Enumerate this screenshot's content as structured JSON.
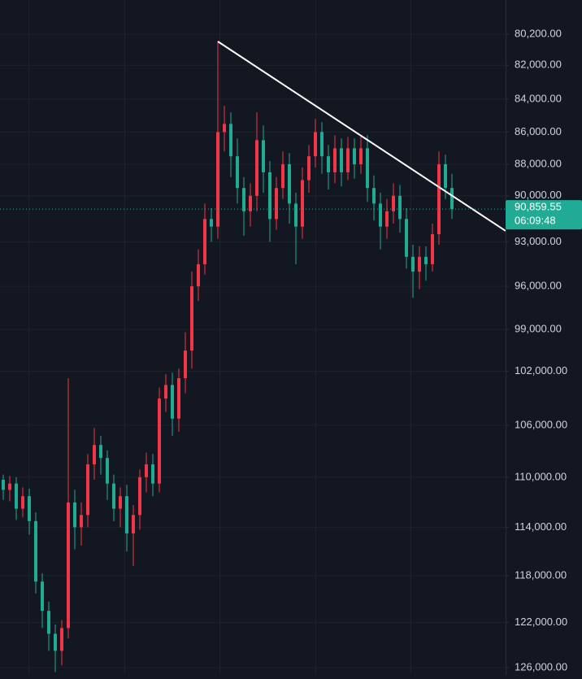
{
  "chart_data": {
    "type": "candlestick",
    "log_scale": true,
    "inverted": true,
    "grid": true,
    "up_color": "#22ab94",
    "down_color": "#f23645",
    "ylim": [
      78270,
      126660
    ],
    "yticks": [
      {
        "value": 80200,
        "label": "80,200.00"
      },
      {
        "value": 82000,
        "label": "82,000.00"
      },
      {
        "value": 84000,
        "label": "84,000.00"
      },
      {
        "value": 86000,
        "label": "86,000.00"
      },
      {
        "value": 88000,
        "label": "88,000.00"
      },
      {
        "value": 90000,
        "label": "90,000.00"
      },
      {
        "value": 93000,
        "label": "93,000.00"
      },
      {
        "value": 96000,
        "label": "96,000.00"
      },
      {
        "value": 99000,
        "label": "99,000.00"
      },
      {
        "value": 102000,
        "label": "102,000.00"
      },
      {
        "value": 106000,
        "label": "106,000.00"
      },
      {
        "value": 110000,
        "label": "110,000.00"
      },
      {
        "value": 114000,
        "label": "114,000.00"
      },
      {
        "value": 118000,
        "label": "118,000.00"
      },
      {
        "value": 122000,
        "label": "122,000.00"
      },
      {
        "value": 126000,
        "label": "126,000.00"
      }
    ],
    "open": [
      110200,
      111000,
      110500,
      112500,
      111500,
      113500,
      118500,
      121000,
      123000,
      124500,
      122500,
      112000,
      114000,
      113000,
      109000,
      107500,
      108500,
      110500,
      112500,
      111500,
      114500,
      113000,
      110000,
      109000,
      110500,
      104000,
      103000,
      105500,
      102500,
      100500,
      96000,
      94500,
      91500,
      92000,
      86000,
      85500,
      87500,
      89500,
      91000,
      90000,
      86500,
      88500,
      91500,
      89500,
      88000,
      90500,
      92000,
      89000,
      87500,
      86000,
      87500,
      88500,
      87000,
      88500,
      87000,
      88000,
      87000,
      89500,
      90500,
      92000,
      91000,
      90000,
      91500,
      94000,
      95000,
      94000,
      94500,
      92500,
      88000,
      89500
    ],
    "close": [
      111000,
      110500,
      112500,
      111500,
      113500,
      118500,
      121000,
      123000,
      124500,
      122500,
      112000,
      114000,
      113000,
      109000,
      107500,
      108500,
      110500,
      112500,
      111500,
      114500,
      113000,
      110000,
      109000,
      110500,
      104000,
      103000,
      105500,
      102500,
      100500,
      96000,
      94500,
      91500,
      92000,
      86000,
      85500,
      87500,
      89500,
      91000,
      90000,
      86500,
      88500,
      91500,
      89500,
      88000,
      90500,
      92000,
      89000,
      87500,
      86000,
      87500,
      88500,
      87000,
      88500,
      87000,
      88000,
      87000,
      89500,
      90500,
      92000,
      91000,
      90000,
      91500,
      94000,
      95000,
      94000,
      94500,
      92500,
      88000,
      89500,
      90859.55
    ],
    "high": [
      111800,
      111900,
      113400,
      113200,
      114600,
      119500,
      122500,
      124500,
      126400,
      125800,
      123400,
      115800,
      115500,
      114000,
      110200,
      109800,
      111800,
      113500,
      114000,
      116000,
      117200,
      114200,
      111200,
      111500,
      111200,
      105000,
      106800,
      106500,
      103600,
      101800,
      97000,
      95200,
      93000,
      92800,
      87200,
      88800,
      90500,
      92600,
      92000,
      91000,
      89800,
      93000,
      92200,
      90200,
      91800,
      94500,
      92800,
      89800,
      88200,
      88600,
      89600,
      89200,
      89400,
      89000,
      88900,
      88600,
      90400,
      91600,
      93500,
      92800,
      91800,
      92400,
      94800,
      96800,
      96200,
      95600,
      95000,
      93200,
      90200,
      91500
    ],
    "low": [
      109800,
      109900,
      110000,
      110800,
      110900,
      112800,
      117800,
      120200,
      122200,
      121800,
      102500,
      111000,
      112000,
      108200,
      106200,
      106800,
      107900,
      109800,
      110800,
      110600,
      112200,
      109400,
      108100,
      108200,
      103200,
      102200,
      102100,
      101800,
      99200,
      95000,
      93500,
      90500,
      90800,
      80600,
      84400,
      84800,
      86400,
      88800,
      89200,
      84800,
      85600,
      87800,
      88800,
      87200,
      87300,
      89800,
      88200,
      86800,
      85200,
      85400,
      86800,
      86200,
      86400,
      86300,
      86400,
      86200,
      86200,
      88700,
      89800,
      90200,
      89200,
      89300,
      90800,
      93200,
      93300,
      93300,
      91800,
      87200,
      87400,
      88600
    ],
    "trendline": {
      "x": [
        33,
        77.25
      ],
      "values": [
        80620,
        92280
      ],
      "color": "#ffffff"
    },
    "last_price": {
      "value": 90859.55,
      "label": "90,859.55"
    },
    "countdown": "06:09:48"
  }
}
